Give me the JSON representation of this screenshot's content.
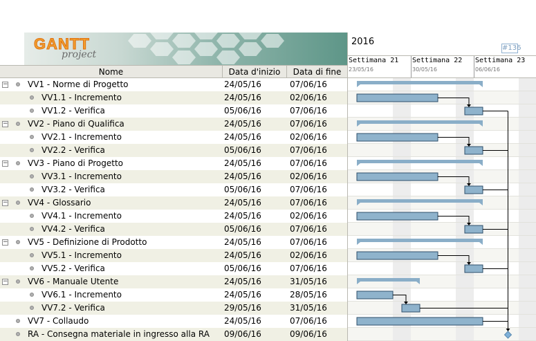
{
  "logo": {
    "brand": "GANTT",
    "sub": "project"
  },
  "columns": {
    "name": "Nome",
    "start": "Data d'inizio",
    "end": "Data di fine"
  },
  "timeline": {
    "year": "2016",
    "page_indicator": "#136",
    "weeks": [
      {
        "label": "Settimana 21",
        "date": "23/05/16"
      },
      {
        "label": "Settimana 22",
        "date": "30/05/16"
      },
      {
        "label": "Settimana 23",
        "date": "06/06/16"
      }
    ],
    "first_day": "23/05/16"
  },
  "colors": {
    "bar_fill": "#8fb3cc",
    "bar_border": "#2f4f6a",
    "summary_bar": "#8aaec8",
    "milestone": "#7fb0d8",
    "weekend_shade": "#ebebeb"
  },
  "tasks": [
    {
      "name": "VV1 - Norme di Progetto",
      "start": "24/05/16",
      "end": "07/06/16",
      "type": "group"
    },
    {
      "name": "VV1.1 - Incremento",
      "start": "24/05/16",
      "end": "02/06/16",
      "type": "task"
    },
    {
      "name": "VV1.2 - Verifica",
      "start": "05/06/16",
      "end": "07/06/16",
      "type": "task"
    },
    {
      "name": "VV2 - Piano di Qualifica",
      "start": "24/05/16",
      "end": "07/06/16",
      "type": "group"
    },
    {
      "name": "VV2.1 - Incremento",
      "start": "24/05/16",
      "end": "02/06/16",
      "type": "task"
    },
    {
      "name": "VV2.2 - Verifica",
      "start": "05/06/16",
      "end": "07/06/16",
      "type": "task"
    },
    {
      "name": "VV3 - Piano di Progetto",
      "start": "24/05/16",
      "end": "07/06/16",
      "type": "group"
    },
    {
      "name": "VV3.1 - Incremento",
      "start": "24/05/16",
      "end": "02/06/16",
      "type": "task"
    },
    {
      "name": "VV3.2 - Verifica",
      "start": "05/06/16",
      "end": "07/06/16",
      "type": "task"
    },
    {
      "name": "VV4 - Glossario",
      "start": "24/05/16",
      "end": "07/06/16",
      "type": "group"
    },
    {
      "name": "VV4.1 - Incremento",
      "start": "24/05/16",
      "end": "02/06/16",
      "type": "task"
    },
    {
      "name": "VV4.2 - Verifica",
      "start": "05/06/16",
      "end": "07/06/16",
      "type": "task"
    },
    {
      "name": "VV5 - Definizione di Prodotto",
      "start": "24/05/16",
      "end": "07/06/16",
      "type": "group"
    },
    {
      "name": "VV5.1 - Incremento",
      "start": "24/05/16",
      "end": "02/06/16",
      "type": "task"
    },
    {
      "name": "VV5.2 - Verifica",
      "start": "05/06/16",
      "end": "07/06/16",
      "type": "task"
    },
    {
      "name": "VV6 - Manuale Utente",
      "start": "24/05/16",
      "end": "31/05/16",
      "type": "group"
    },
    {
      "name": "VV6.1 - Incremento",
      "start": "24/05/16",
      "end": "28/05/16",
      "type": "task"
    },
    {
      "name": "VV7.2 - Verifica",
      "start": "29/05/16",
      "end": "31/05/16",
      "type": "task"
    },
    {
      "name": "VV7 - Collaudo",
      "start": "24/05/16",
      "end": "07/06/16",
      "type": "task-top"
    },
    {
      "name": "RA - Consegna materiale in ingresso alla RA",
      "start": "09/06/16",
      "end": "09/06/16",
      "type": "milestone"
    }
  ]
}
